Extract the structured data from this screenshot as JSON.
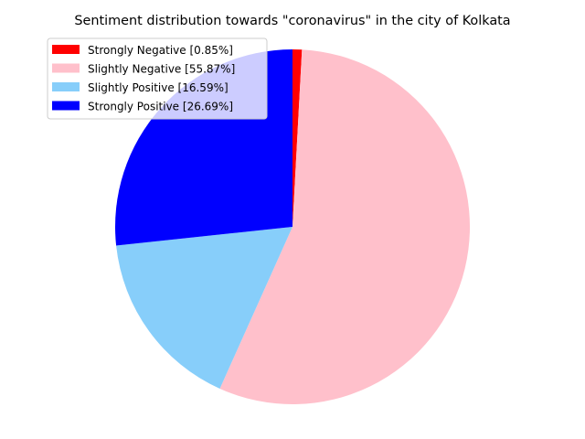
{
  "chart_data": {
    "type": "pie",
    "title": "Sentiment distribution towards \"coronavirus\" in the city of Kolkata",
    "legend_position": "top-left",
    "start_angle_deg": 90,
    "direction": "clockwise",
    "slices": [
      {
        "label": "Strongly Negative [0.85%]",
        "value": 0.85,
        "color": "#ff0000"
      },
      {
        "label": "Slightly Negative [55.87%]",
        "value": 55.87,
        "color": "#ffc0cb"
      },
      {
        "label": "Slightly Positive [16.59%]",
        "value": 16.59,
        "color": "#87cefa"
      },
      {
        "label": "Strongly Positive [26.69%]",
        "value": 26.69,
        "color": "#0000ff"
      }
    ]
  }
}
